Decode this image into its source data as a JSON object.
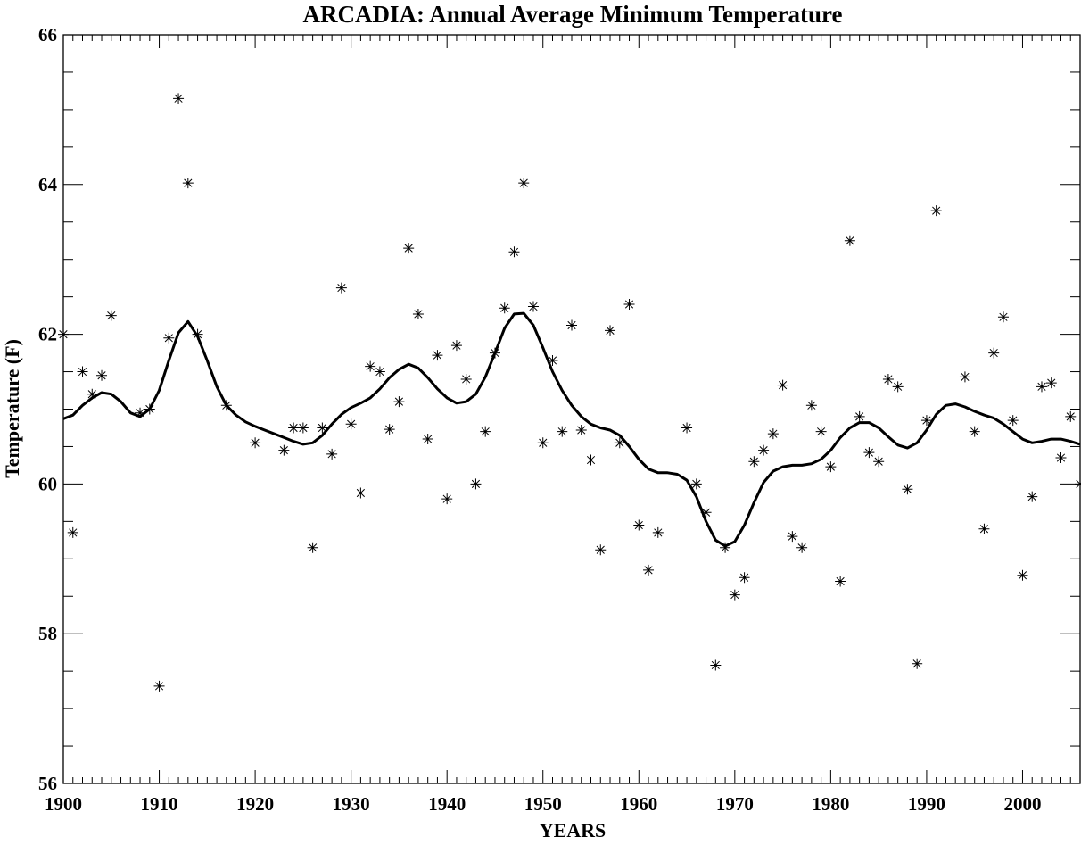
{
  "chart_data": {
    "type": "scatter",
    "title": "ARCADIA: Annual Average Minimum Temperature",
    "xlabel": "YEARS",
    "ylabel": "Temperature (F)",
    "xlim": [
      1900,
      2006
    ],
    "ylim": [
      56,
      66
    ],
    "x_ticks": [
      "1900",
      "1910",
      "1920",
      "1930",
      "1940",
      "1950",
      "1960",
      "1970",
      "1980",
      "1990",
      "2000"
    ],
    "y_ticks": [
      "56",
      "58",
      "60",
      "62",
      "64",
      "66"
    ],
    "grid": false,
    "colors": {
      "marks": "#000000",
      "background": "#ffffff"
    },
    "series": [
      {
        "kind": "markers",
        "marker": "asterisk",
        "points": [
          [
            1900,
            62.0
          ],
          [
            1901,
            59.35
          ],
          [
            1902,
            61.5
          ],
          [
            1903,
            61.2
          ],
          [
            1904,
            61.45
          ],
          [
            1905,
            62.25
          ],
          [
            1908,
            60.95
          ],
          [
            1909,
            61.0
          ],
          [
            1910,
            57.3
          ],
          [
            1911,
            61.95
          ],
          [
            1912,
            65.15
          ],
          [
            1913,
            64.02
          ],
          [
            1914,
            62.0
          ],
          [
            1917,
            61.05
          ],
          [
            1920,
            60.55
          ],
          [
            1923,
            60.45
          ],
          [
            1924,
            60.75
          ],
          [
            1925,
            60.75
          ],
          [
            1926,
            59.15
          ],
          [
            1927,
            60.75
          ],
          [
            1928,
            60.4
          ],
          [
            1929,
            62.62
          ],
          [
            1930,
            60.8
          ],
          [
            1931,
            59.88
          ],
          [
            1932,
            61.57
          ],
          [
            1933,
            61.5
          ],
          [
            1934,
            60.73
          ],
          [
            1935,
            61.1
          ],
          [
            1936,
            63.15
          ],
          [
            1937,
            62.27
          ],
          [
            1938,
            60.6
          ],
          [
            1939,
            61.72
          ],
          [
            1940,
            59.8
          ],
          [
            1941,
            61.85
          ],
          [
            1942,
            61.4
          ],
          [
            1943,
            60.0
          ],
          [
            1944,
            60.7
          ],
          [
            1945,
            61.75
          ],
          [
            1946,
            62.35
          ],
          [
            1947,
            63.1
          ],
          [
            1948,
            64.02
          ],
          [
            1949,
            62.37
          ],
          [
            1950,
            60.55
          ],
          [
            1951,
            61.65
          ],
          [
            1952,
            60.7
          ],
          [
            1953,
            62.12
          ],
          [
            1954,
            60.72
          ],
          [
            1955,
            60.32
          ],
          [
            1956,
            59.12
          ],
          [
            1957,
            62.05
          ],
          [
            1958,
            60.55
          ],
          [
            1959,
            62.4
          ],
          [
            1960,
            59.45
          ],
          [
            1961,
            58.85
          ],
          [
            1962,
            59.35
          ],
          [
            1965,
            60.75
          ],
          [
            1966,
            60.0
          ],
          [
            1967,
            59.62
          ],
          [
            1968,
            57.58
          ],
          [
            1969,
            59.15
          ],
          [
            1970,
            58.52
          ],
          [
            1971,
            58.75
          ],
          [
            1972,
            60.3
          ],
          [
            1973,
            60.45
          ],
          [
            1974,
            60.67
          ],
          [
            1975,
            61.32
          ],
          [
            1976,
            59.3
          ],
          [
            1977,
            59.15
          ],
          [
            1978,
            61.05
          ],
          [
            1979,
            60.7
          ],
          [
            1980,
            60.23
          ],
          [
            1981,
            58.7
          ],
          [
            1982,
            63.25
          ],
          [
            1983,
            60.9
          ],
          [
            1984,
            60.42
          ],
          [
            1985,
            60.3
          ],
          [
            1986,
            61.4
          ],
          [
            1987,
            61.3
          ],
          [
            1988,
            59.93
          ],
          [
            1989,
            57.6
          ],
          [
            1990,
            60.85
          ],
          [
            1991,
            63.65
          ],
          [
            1994,
            61.43
          ],
          [
            1995,
            60.7
          ],
          [
            1996,
            59.4
          ],
          [
            1997,
            61.75
          ],
          [
            1998,
            62.23
          ],
          [
            1999,
            60.85
          ],
          [
            2000,
            58.78
          ],
          [
            2001,
            59.83
          ],
          [
            2002,
            61.3
          ],
          [
            2003,
            61.35
          ],
          [
            2004,
            60.35
          ],
          [
            2005,
            60.9
          ],
          [
            2006,
            60.0
          ]
        ]
      },
      {
        "kind": "line",
        "points": [
          [
            1900,
            60.87
          ],
          [
            1901,
            60.92
          ],
          [
            1902,
            61.05
          ],
          [
            1903,
            61.15
          ],
          [
            1904,
            61.22
          ],
          [
            1905,
            61.2
          ],
          [
            1906,
            61.1
          ],
          [
            1907,
            60.95
          ],
          [
            1908,
            60.9
          ],
          [
            1909,
            61.0
          ],
          [
            1910,
            61.25
          ],
          [
            1911,
            61.65
          ],
          [
            1912,
            62.02
          ],
          [
            1913,
            62.17
          ],
          [
            1914,
            61.97
          ],
          [
            1915,
            61.65
          ],
          [
            1916,
            61.3
          ],
          [
            1917,
            61.05
          ],
          [
            1918,
            60.92
          ],
          [
            1919,
            60.83
          ],
          [
            1920,
            60.77
          ],
          [
            1921,
            60.72
          ],
          [
            1922,
            60.67
          ],
          [
            1923,
            60.62
          ],
          [
            1924,
            60.57
          ],
          [
            1925,
            60.53
          ],
          [
            1926,
            60.55
          ],
          [
            1927,
            60.65
          ],
          [
            1928,
            60.8
          ],
          [
            1929,
            60.93
          ],
          [
            1930,
            61.02
          ],
          [
            1931,
            61.08
          ],
          [
            1932,
            61.15
          ],
          [
            1933,
            61.27
          ],
          [
            1934,
            61.42
          ],
          [
            1935,
            61.53
          ],
          [
            1936,
            61.6
          ],
          [
            1937,
            61.55
          ],
          [
            1938,
            61.42
          ],
          [
            1939,
            61.27
          ],
          [
            1940,
            61.15
          ],
          [
            1941,
            61.08
          ],
          [
            1942,
            61.1
          ],
          [
            1943,
            61.2
          ],
          [
            1944,
            61.43
          ],
          [
            1945,
            61.75
          ],
          [
            1946,
            62.08
          ],
          [
            1947,
            62.27
          ],
          [
            1948,
            62.28
          ],
          [
            1949,
            62.12
          ],
          [
            1950,
            61.82
          ],
          [
            1951,
            61.5
          ],
          [
            1952,
            61.25
          ],
          [
            1953,
            61.05
          ],
          [
            1954,
            60.9
          ],
          [
            1955,
            60.8
          ],
          [
            1956,
            60.75
          ],
          [
            1957,
            60.72
          ],
          [
            1958,
            60.65
          ],
          [
            1959,
            60.5
          ],
          [
            1960,
            60.33
          ],
          [
            1961,
            60.2
          ],
          [
            1962,
            60.15
          ],
          [
            1963,
            60.15
          ],
          [
            1964,
            60.13
          ],
          [
            1965,
            60.05
          ],
          [
            1966,
            59.83
          ],
          [
            1967,
            59.5
          ],
          [
            1968,
            59.25
          ],
          [
            1969,
            59.17
          ],
          [
            1970,
            59.23
          ],
          [
            1971,
            59.45
          ],
          [
            1972,
            59.75
          ],
          [
            1973,
            60.02
          ],
          [
            1974,
            60.17
          ],
          [
            1975,
            60.23
          ],
          [
            1976,
            60.25
          ],
          [
            1977,
            60.25
          ],
          [
            1978,
            60.27
          ],
          [
            1979,
            60.33
          ],
          [
            1980,
            60.45
          ],
          [
            1981,
            60.62
          ],
          [
            1982,
            60.75
          ],
          [
            1983,
            60.82
          ],
          [
            1984,
            60.82
          ],
          [
            1985,
            60.75
          ],
          [
            1986,
            60.63
          ],
          [
            1987,
            60.52
          ],
          [
            1988,
            60.48
          ],
          [
            1989,
            60.55
          ],
          [
            1990,
            60.72
          ],
          [
            1991,
            60.93
          ],
          [
            1992,
            61.05
          ],
          [
            1993,
            61.07
          ],
          [
            1994,
            61.03
          ],
          [
            1995,
            60.97
          ],
          [
            1996,
            60.92
          ],
          [
            1997,
            60.88
          ],
          [
            1998,
            60.8
          ],
          [
            1999,
            60.7
          ],
          [
            2000,
            60.6
          ],
          [
            2001,
            60.55
          ],
          [
            2002,
            60.57
          ],
          [
            2003,
            60.6
          ],
          [
            2004,
            60.6
          ],
          [
            2005,
            60.57
          ],
          [
            2006,
            60.53
          ]
        ]
      }
    ]
  }
}
